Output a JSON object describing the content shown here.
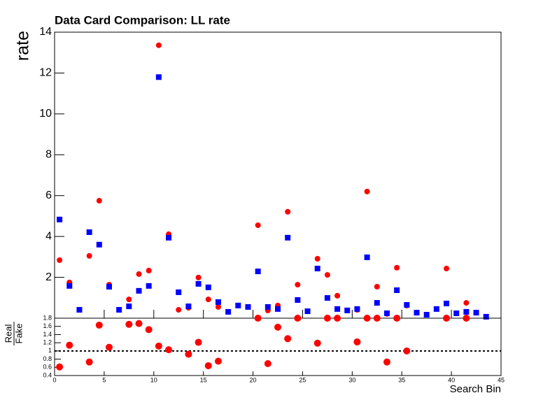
{
  "chart_data": [
    {
      "type": "scatter",
      "title": "Data Card Comparison: LL rate",
      "y_label": "rate",
      "x": [
        0.5,
        1.5,
        2.5,
        3.5,
        4.5,
        5.5,
        6.5,
        7.5,
        8.5,
        9.5,
        10.5,
        11.5,
        12.5,
        13.5,
        14.5,
        15.5,
        16.5,
        17.5,
        18.5,
        19.5,
        20.5,
        21.5,
        22.5,
        23.5,
        24.5,
        25.5,
        26.5,
        27.5,
        28.5,
        29.5,
        30.5,
        31.5,
        32.5,
        33.5,
        34.5,
        35.5,
        36.5,
        37.5,
        38.5,
        39.5,
        40.5,
        41.5,
        42.5,
        43.5
      ],
      "series": [
        {
          "color": "#ff0000",
          "marker": "circle",
          "values": [
            2.84,
            1.75,
            null,
            3.05,
            5.75,
            1.64,
            null,
            0.92,
            2.16,
            2.33,
            13.36,
            4.11,
            0.41,
            0.51,
            1.99,
            0.92,
            0.55,
            null,
            null,
            null,
            4.55,
            0.38,
            0.62,
            5.21,
            1.64,
            null,
            2.91,
            2.12,
            1.1,
            null,
            0.41,
            6.2,
            1.54,
            0.21,
            2.47,
            0.62,
            null,
            null,
            null,
            2.43,
            null,
            0.75,
            null,
            null
          ]
        },
        {
          "color": "#0000ff",
          "marker": "square",
          "values": [
            4.83,
            1.58,
            0.41,
            4.21,
            3.6,
            1.54,
            0.41,
            0.58,
            1.34,
            1.58,
            11.8,
            3.94,
            1.27,
            0.58,
            1.68,
            1.51,
            0.79,
            0.31,
            0.62,
            0.55,
            2.29,
            0.55,
            0.45,
            3.94,
            0.89,
            0.34,
            2.43,
            0.99,
            0.45,
            0.38,
            0.45,
            2.98,
            0.75,
            0.24,
            1.37,
            0.65,
            0.27,
            0.17,
            0.45,
            0.72,
            0.24,
            0.31,
            0.27,
            0.07
          ]
        }
      ],
      "xlim": [
        0,
        45
      ],
      "ylim": [
        0,
        14
      ],
      "yticks": [
        2,
        4,
        6,
        8,
        10,
        12,
        14
      ]
    },
    {
      "type": "scatter",
      "x_label": "Search Bin",
      "y_label": {
        "numerator": "Real",
        "denominator": "Fake"
      },
      "x": [
        0.5,
        1.5,
        2.5,
        3.5,
        4.5,
        5.5,
        6.5,
        7.5,
        8.5,
        9.5,
        10.5,
        11.5,
        12.5,
        13.5,
        14.5,
        15.5,
        16.5,
        17.5,
        18.5,
        19.5,
        20.5,
        21.5,
        22.5,
        23.5,
        24.5,
        25.5,
        26.5,
        27.5,
        28.5,
        29.5,
        30.5,
        31.5,
        32.5,
        33.5,
        34.5,
        35.5,
        36.5,
        37.5,
        38.5,
        39.5,
        40.5,
        41.5,
        42.5,
        43.5
      ],
      "series": [
        {
          "color": "#ff0000",
          "marker": "circle",
          "values": [
            0.61,
            1.14,
            null,
            0.73,
            1.63,
            1.09,
            null,
            1.65,
            1.67,
            1.52,
            1.12,
            1.03,
            null,
            0.92,
            1.21,
            0.64,
            0.75,
            null,
            null,
            null,
            1.8,
            0.69,
            1.58,
            1.3,
            1.8,
            null,
            1.19,
            1.8,
            1.8,
            null,
            1.22,
            1.8,
            1.8,
            0.73,
            1.8,
            1.0,
            null,
            null,
            null,
            1.8,
            null,
            1.8,
            null,
            null
          ]
        }
      ],
      "reference_line": 1,
      "xlim": [
        0,
        45
      ],
      "xticks": [
        0,
        5,
        10,
        15,
        20,
        25,
        30,
        35,
        40,
        45
      ],
      "ylim": [
        0.4,
        1.8
      ],
      "yticks": [
        0.4,
        0.6,
        0.8,
        1,
        1.2,
        1.4,
        1.6,
        1.8
      ]
    }
  ]
}
